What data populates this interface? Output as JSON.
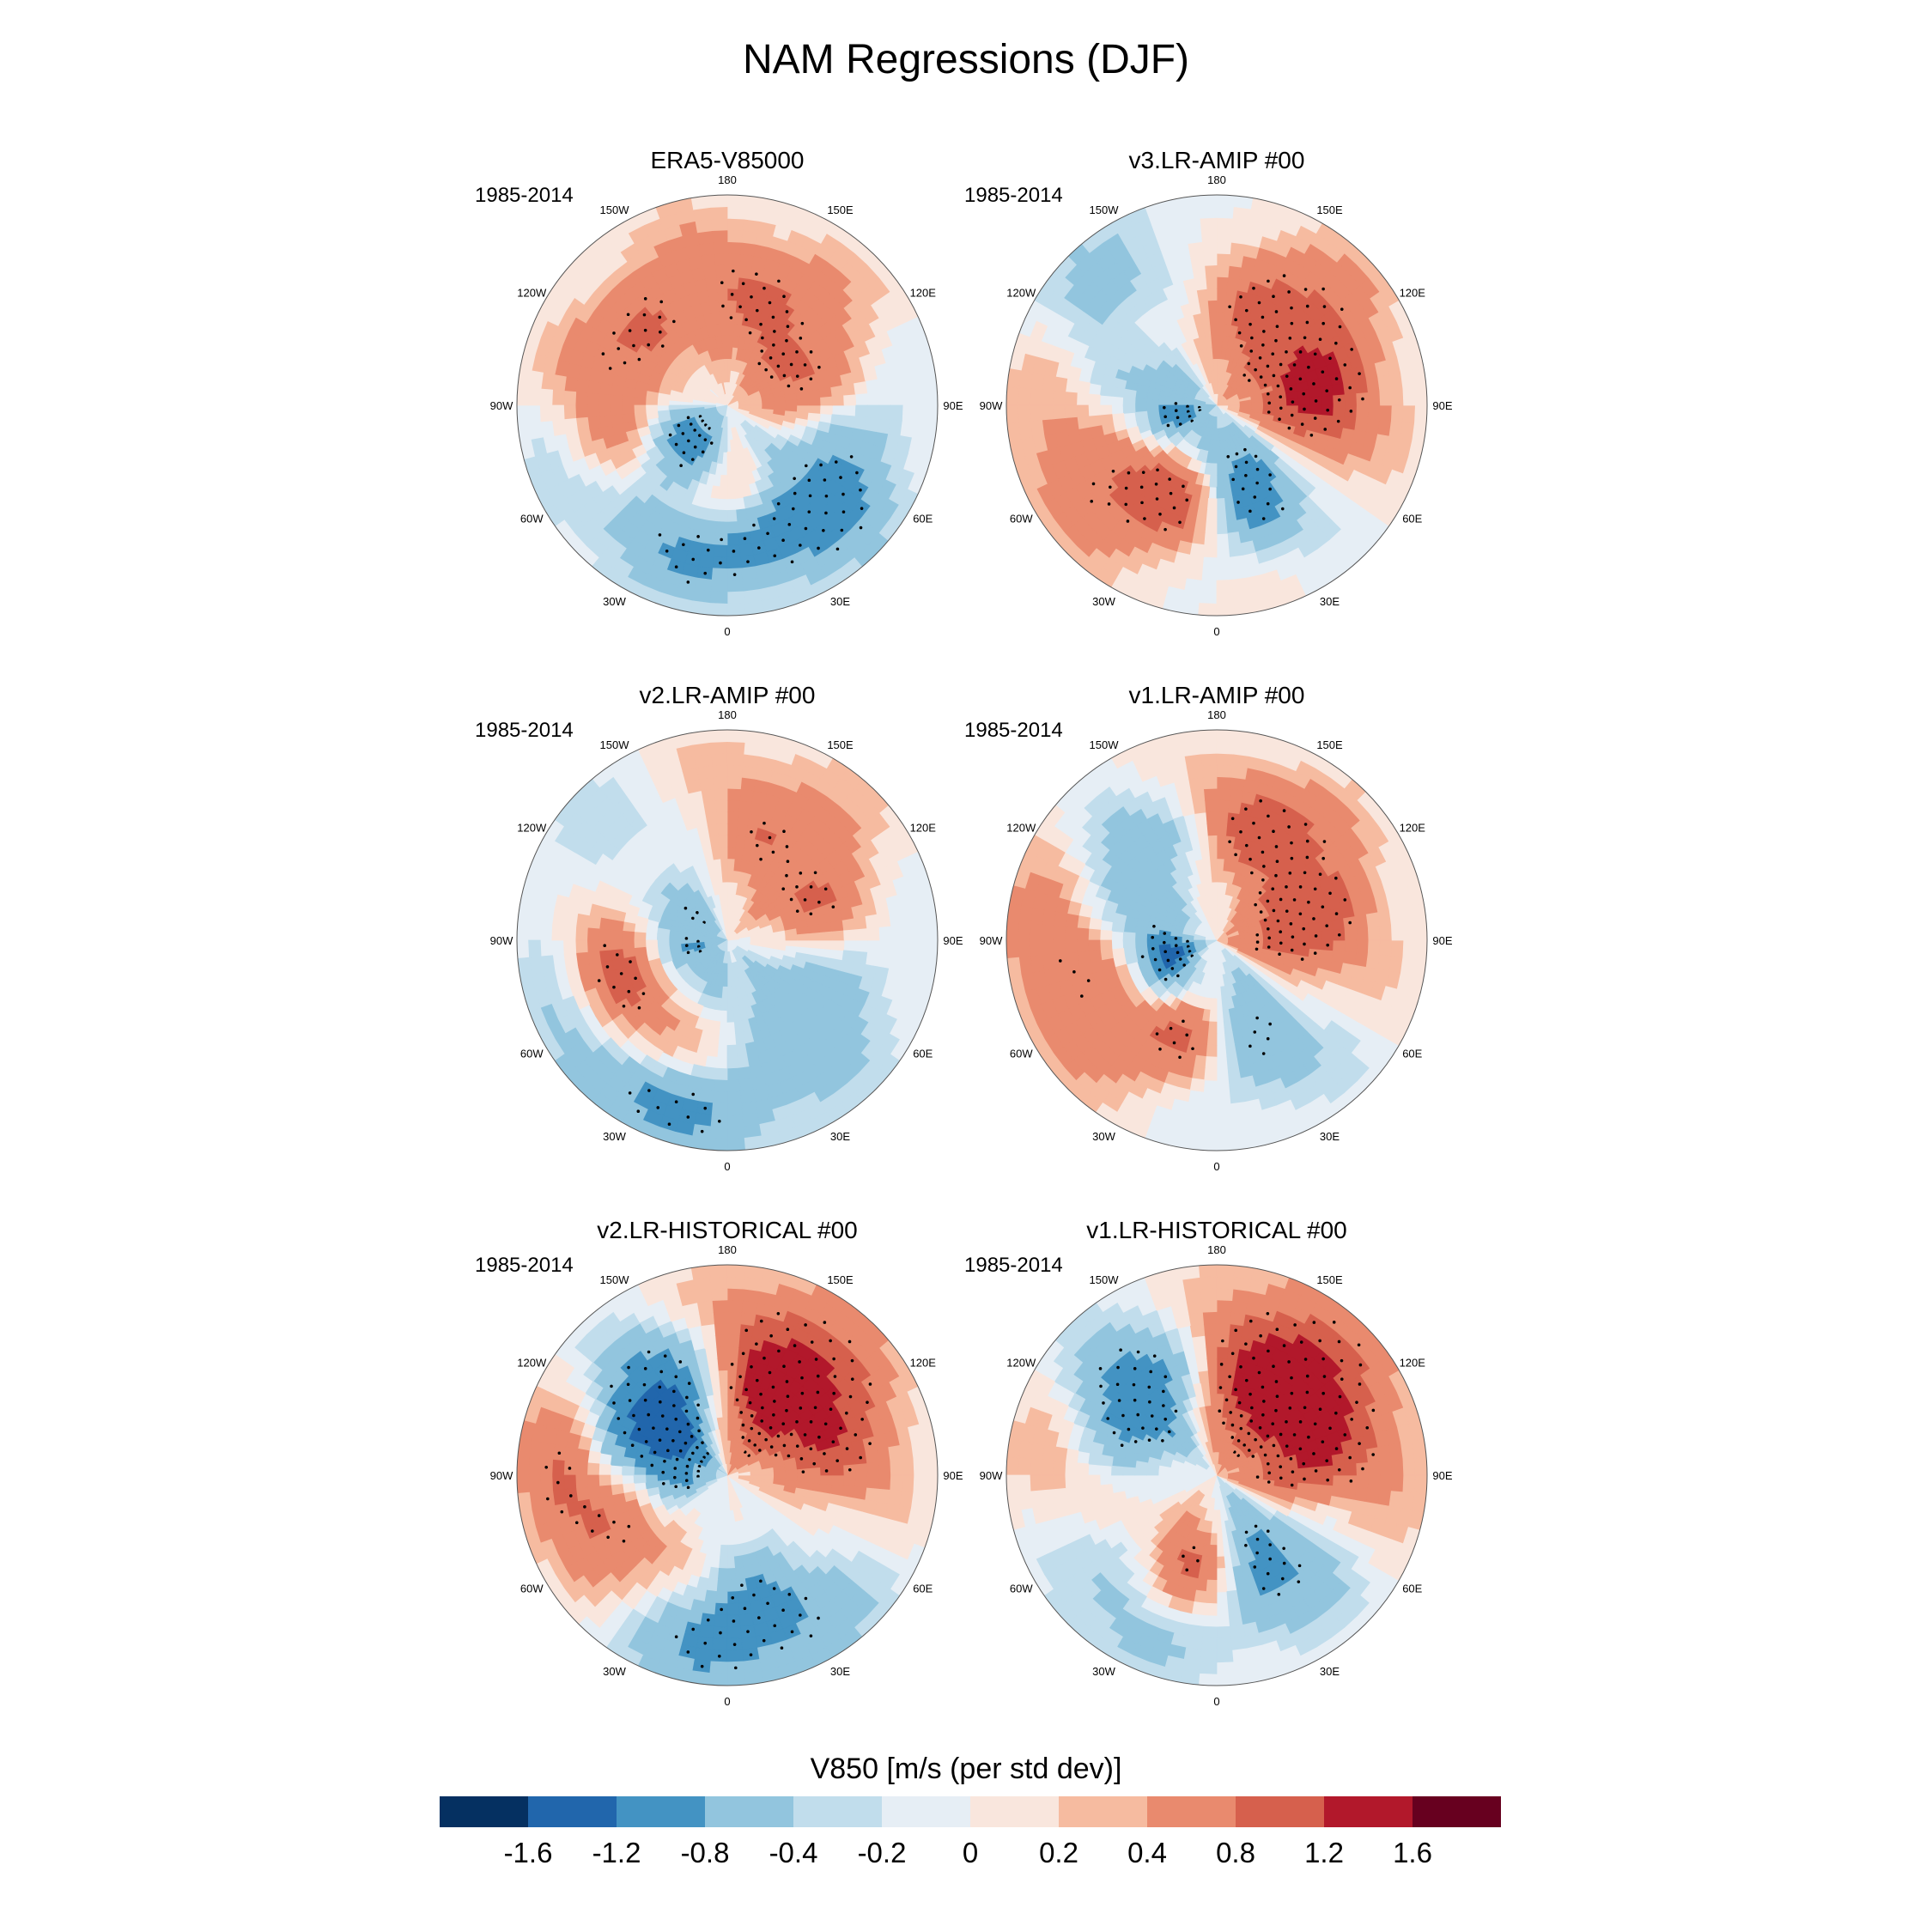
{
  "title": "NAM Regressions (DJF)",
  "colors": [
    "#053061",
    "#2166ac",
    "#4393c3",
    "#92c5de",
    "#c1ddec",
    "#e6eef5",
    "#f9e6dd",
    "#f6bba0",
    "#e98a6e",
    "#d6604d",
    "#b2182b",
    "#67001f"
  ],
  "longitude_labels": [
    "180",
    "150E",
    "120E",
    "90E",
    "60E",
    "30E",
    "0",
    "30W",
    "60W",
    "90W",
    "120W",
    "150W"
  ],
  "panels": [
    {
      "title": "ERA5-V85000",
      "period": "1985-2014",
      "field": "era5"
    },
    {
      "title": "v3.LR-AMIP  #00",
      "period": "1985-2014",
      "field": "v3amip"
    },
    {
      "title": "v2.LR-AMIP  #00",
      "period": "1985-2014",
      "field": "v2amip"
    },
    {
      "title": "v1.LR-AMIP  #00",
      "period": "1985-2014",
      "field": "v1amip"
    },
    {
      "title": "v2.LR-HISTORICAL  #00",
      "period": "1985-2014",
      "field": "v2hist"
    },
    {
      "title": "v1.LR-HISTORICAL  #00",
      "period": "1985-2014",
      "field": "v1hist"
    }
  ],
  "colorbar": {
    "title": "V850 [m/s (per std dev)]",
    "labels": [
      "-1.6",
      "-1.2",
      "-0.8",
      "-0.4",
      "-0.2",
      "0",
      "0.2",
      "0.4",
      "0.8",
      "1.2",
      "1.6"
    ]
  },
  "fields": {
    "era5": [
      {
        "lon": 260,
        "r": 0.55,
        "v": 0.9,
        "w": 45,
        "dr": 0.22
      },
      {
        "lon": 310,
        "r": 0.25,
        "v": -1.2,
        "w": 30,
        "dr": 0.15
      },
      {
        "lon": 100,
        "r": 0.35,
        "v": 0.8,
        "w": 40,
        "dr": 0.2
      },
      {
        "lon": 40,
        "r": 0.55,
        "v": -1.4,
        "w": 35,
        "dr": 0.25
      },
      {
        "lon": 10,
        "r": 0.4,
        "v": 1.0,
        "w": 20,
        "dr": 0.15
      },
      {
        "lon": 160,
        "r": 0.55,
        "v": 0.6,
        "w": 35,
        "dr": 0.25
      },
      {
        "lon": 300,
        "r": 0.8,
        "v": -0.4,
        "w": 30,
        "dr": 0.2
      },
      {
        "lon": 340,
        "r": 0.7,
        "v": -0.6,
        "w": 25,
        "dr": 0.15
      }
    ],
    "v3amip": [
      {
        "lon": 230,
        "r": 0.75,
        "v": -0.9,
        "w": 40,
        "dr": 0.25
      },
      {
        "lon": 150,
        "r": 0.5,
        "v": 1.0,
        "w": 40,
        "dr": 0.3
      },
      {
        "lon": 80,
        "r": 0.45,
        "v": 1.3,
        "w": 30,
        "dr": 0.2
      },
      {
        "lon": 30,
        "r": 0.45,
        "v": -1.4,
        "w": 30,
        "dr": 0.2
      },
      {
        "lon": 330,
        "r": 0.45,
        "v": 1.5,
        "w": 25,
        "dr": 0.18
      },
      {
        "lon": 275,
        "r": 0.8,
        "v": 0.9,
        "w": 35,
        "dr": 0.2
      },
      {
        "lon": 300,
        "r": 0.2,
        "v": -1.0,
        "w": 50,
        "dr": 0.15
      }
    ],
    "v2amip": [
      {
        "lon": 230,
        "r": 0.6,
        "v": -0.7,
        "w": 40,
        "dr": 0.25
      },
      {
        "lon": 170,
        "r": 0.55,
        "v": 0.8,
        "w": 30,
        "dr": 0.3
      },
      {
        "lon": 290,
        "r": 0.55,
        "v": 1.4,
        "w": 40,
        "dr": 0.2
      },
      {
        "lon": 330,
        "r": 0.8,
        "v": -1.1,
        "w": 35,
        "dr": 0.18
      },
      {
        "lon": 60,
        "r": 0.5,
        "v": -0.7,
        "w": 35,
        "dr": 0.25
      },
      {
        "lon": 110,
        "r": 0.45,
        "v": 0.9,
        "w": 25,
        "dr": 0.2
      },
      {
        "lon": 280,
        "r": 0.2,
        "v": -0.9,
        "w": 60,
        "dr": 0.15
      }
    ],
    "v1amip": [
      {
        "lon": 220,
        "r": 0.6,
        "v": -1.2,
        "w": 30,
        "dr": 0.2
      },
      {
        "lon": 170,
        "r": 0.6,
        "v": 1.0,
        "w": 30,
        "dr": 0.2
      },
      {
        "lon": 90,
        "r": 0.4,
        "v": 1.2,
        "w": 40,
        "dr": 0.25
      },
      {
        "lon": 30,
        "r": 0.45,
        "v": -1.3,
        "w": 30,
        "dr": 0.25
      },
      {
        "lon": 340,
        "r": 0.4,
        "v": 1.3,
        "w": 25,
        "dr": 0.2
      },
      {
        "lon": 270,
        "r": 0.75,
        "v": 0.9,
        "w": 35,
        "dr": 0.2
      },
      {
        "lon": 300,
        "r": 0.25,
        "v": -1.5,
        "w": 35,
        "dr": 0.12
      }
    ],
    "v2hist": [
      {
        "lon": 220,
        "r": 0.5,
        "v": -1.7,
        "w": 35,
        "dr": 0.25
      },
      {
        "lon": 165,
        "r": 0.5,
        "v": 1.6,
        "w": 30,
        "dr": 0.3
      },
      {
        "lon": 310,
        "r": 0.5,
        "v": 1.2,
        "w": 35,
        "dr": 0.25
      },
      {
        "lon": 0,
        "r": 0.7,
        "v": -1.3,
        "w": 35,
        "dr": 0.25
      },
      {
        "lon": 110,
        "r": 0.5,
        "v": 0.9,
        "w": 30,
        "dr": 0.25
      },
      {
        "lon": 280,
        "r": 0.25,
        "v": -1.0,
        "w": 40,
        "dr": 0.15
      },
      {
        "lon": 265,
        "r": 0.8,
        "v": 0.9,
        "w": 25,
        "dr": 0.15
      }
    ],
    "v1hist": [
      {
        "lon": 220,
        "r": 0.55,
        "v": -1.7,
        "w": 30,
        "dr": 0.25
      },
      {
        "lon": 165,
        "r": 0.5,
        "v": 1.4,
        "w": 35,
        "dr": 0.3
      },
      {
        "lon": 30,
        "r": 0.45,
        "v": -1.5,
        "w": 30,
        "dr": 0.25
      },
      {
        "lon": 350,
        "r": 0.45,
        "v": 1.4,
        "w": 25,
        "dr": 0.2
      },
      {
        "lon": 270,
        "r": 0.75,
        "v": 0.9,
        "w": 30,
        "dr": 0.2
      },
      {
        "lon": 310,
        "r": 0.75,
        "v": -0.9,
        "w": 30,
        "dr": 0.2
      },
      {
        "lon": 110,
        "r": 0.6,
        "v": 0.8,
        "w": 35,
        "dr": 0.25
      },
      {
        "lon": 80,
        "r": 0.3,
        "v": 0.7,
        "w": 30,
        "dr": 0.2
      }
    ]
  }
}
